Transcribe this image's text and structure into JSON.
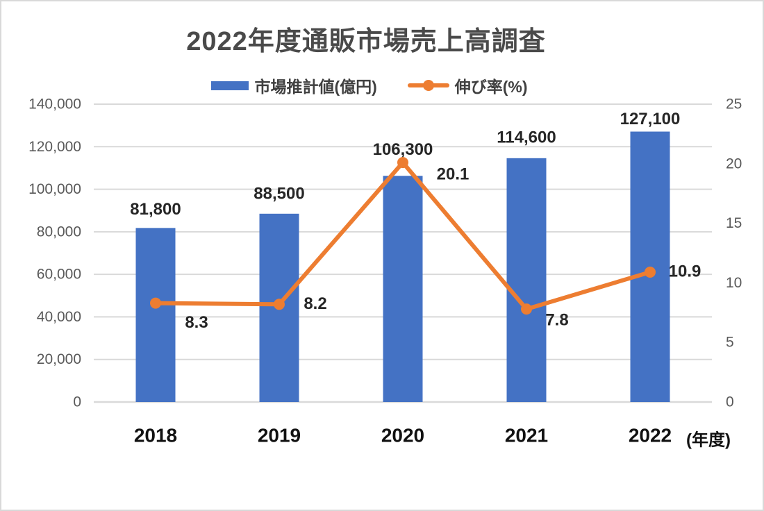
{
  "title": "2022年度通販市場売上高調査",
  "x_axis_unit": "(年度)",
  "legend": [
    {
      "label": "市場推計値(億円)",
      "type": "bar",
      "color": "#4472C4"
    },
    {
      "label": "伸び率(%)",
      "type": "line",
      "color": "#ED7D31"
    }
  ],
  "colors": {
    "bar": "#4472C4",
    "line": "#ED7D31",
    "gridline": "#D9D9D9",
    "axis_tick_text": "#595959",
    "title_text": "#4A4A4A",
    "data_label_text": "#262626",
    "category_text": "#111111"
  },
  "chart_data": {
    "type": "combo",
    "title": "2022年度通販市場売上高調査",
    "categories": [
      "2018",
      "2019",
      "2020",
      "2021",
      "2022"
    ],
    "category_unit": "(年度)",
    "series": [
      {
        "name": "市場推計値(億円)",
        "type": "bar",
        "axis": "left",
        "color": "#4472C4",
        "values": [
          81800,
          88500,
          106300,
          114600,
          127100
        ],
        "labels": [
          "81,800",
          "88,500",
          "106,300",
          "114,600",
          "127,100"
        ]
      },
      {
        "name": "伸び率(%)",
        "type": "line",
        "axis": "right",
        "color": "#ED7D31",
        "values": [
          8.3,
          8.2,
          20.1,
          7.8,
          10.9
        ],
        "labels": [
          "8.3",
          "8.2",
          "20.1",
          "7.8",
          "10.9"
        ]
      }
    ],
    "left_axis": {
      "min": 0,
      "max": 140000,
      "step": 20000,
      "tick_labels": [
        "0",
        "20,000",
        "40,000",
        "60,000",
        "80,000",
        "100,000",
        "120,000",
        "140,000"
      ]
    },
    "right_axis": {
      "min": 0,
      "max": 25,
      "step": 5,
      "tick_labels": [
        "0",
        "5",
        "10",
        "15",
        "20",
        "25"
      ]
    },
    "grid": true,
    "legend_position": "top"
  }
}
